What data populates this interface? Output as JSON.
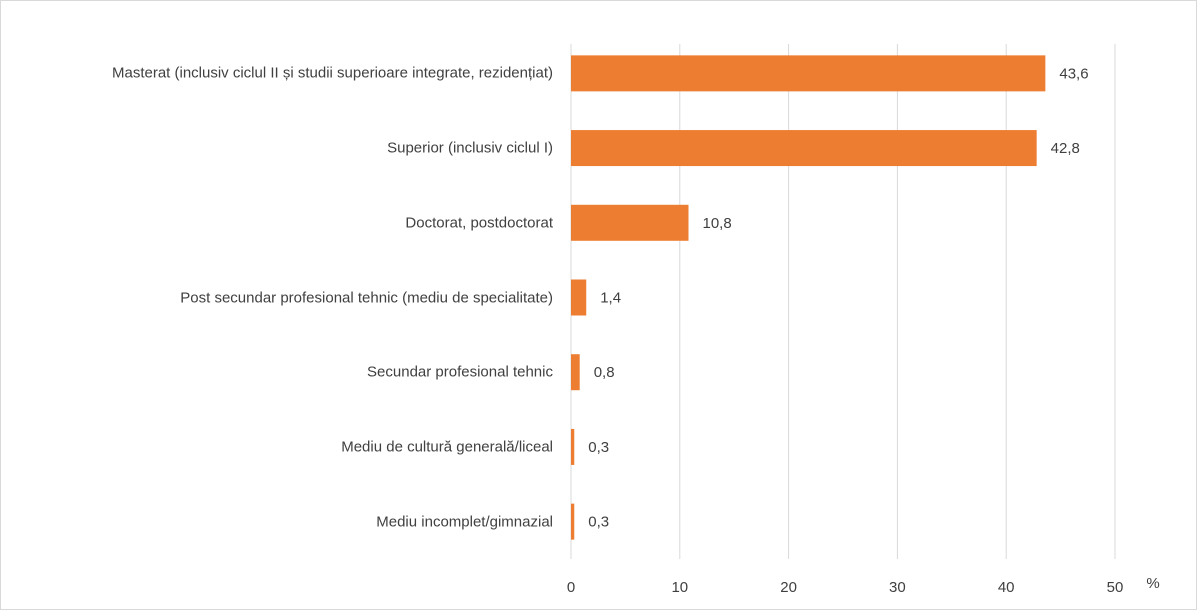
{
  "chart_data": {
    "type": "bar",
    "orientation": "horizontal",
    "categories": [
      "Masterat (inclusiv ciclul II și studii superioare integrate, rezidențiat)",
      "Superior (inclusiv ciclul I)",
      "Doctorat, postdoctorat",
      "Post secundar profesional tehnic (mediu de specialitate)",
      "Secundar profesional tehnic",
      "Mediu de cultură generală/liceal",
      "Mediu incomplet/gimnazial"
    ],
    "values": [
      43.6,
      42.8,
      10.8,
      1.4,
      0.8,
      0.3,
      0.3
    ],
    "value_labels": [
      "43,6",
      "42,8",
      "10,8",
      "1,4",
      "0,8",
      "0,3",
      "0,3"
    ],
    "color": "#ed7d31",
    "xlim": [
      0,
      50
    ],
    "xticks": [
      0,
      10,
      20,
      30,
      40,
      50
    ],
    "x_label": "%",
    "grid": true
  }
}
